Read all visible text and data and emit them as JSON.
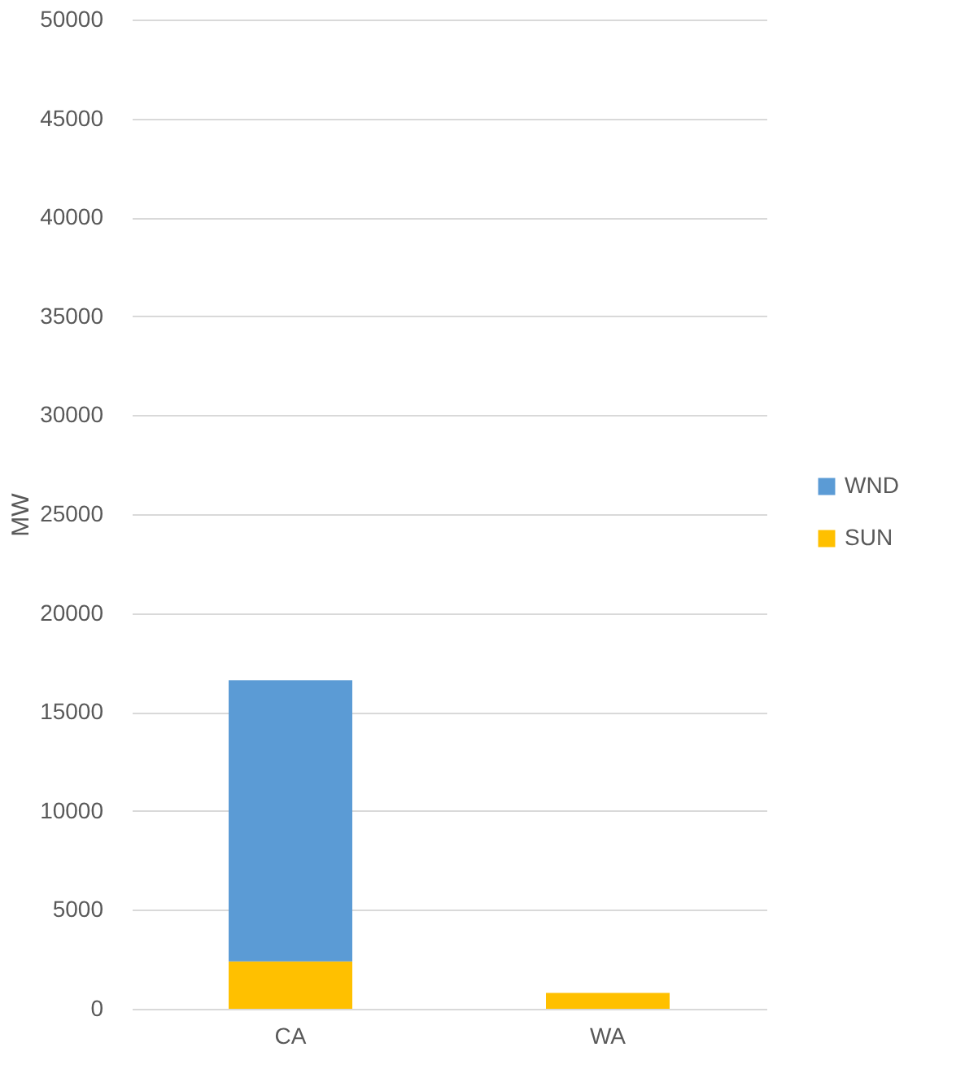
{
  "chart_data": {
    "type": "bar",
    "stacked": true,
    "ylabel": "MW",
    "categories": [
      "CA",
      "WA"
    ],
    "series": [
      {
        "name": "SUN",
        "color": "#ffc000",
        "values": [
          2400,
          800
        ]
      },
      {
        "name": "WND",
        "color": "#5b9bd5",
        "values": [
          14200,
          null
        ]
      }
    ],
    "ylim": [
      0,
      50000
    ],
    "yticks": [
      0,
      5000,
      10000,
      15000,
      20000,
      25000,
      30000,
      35000,
      40000,
      45000,
      50000
    ],
    "grid": "y",
    "legend": "right"
  }
}
